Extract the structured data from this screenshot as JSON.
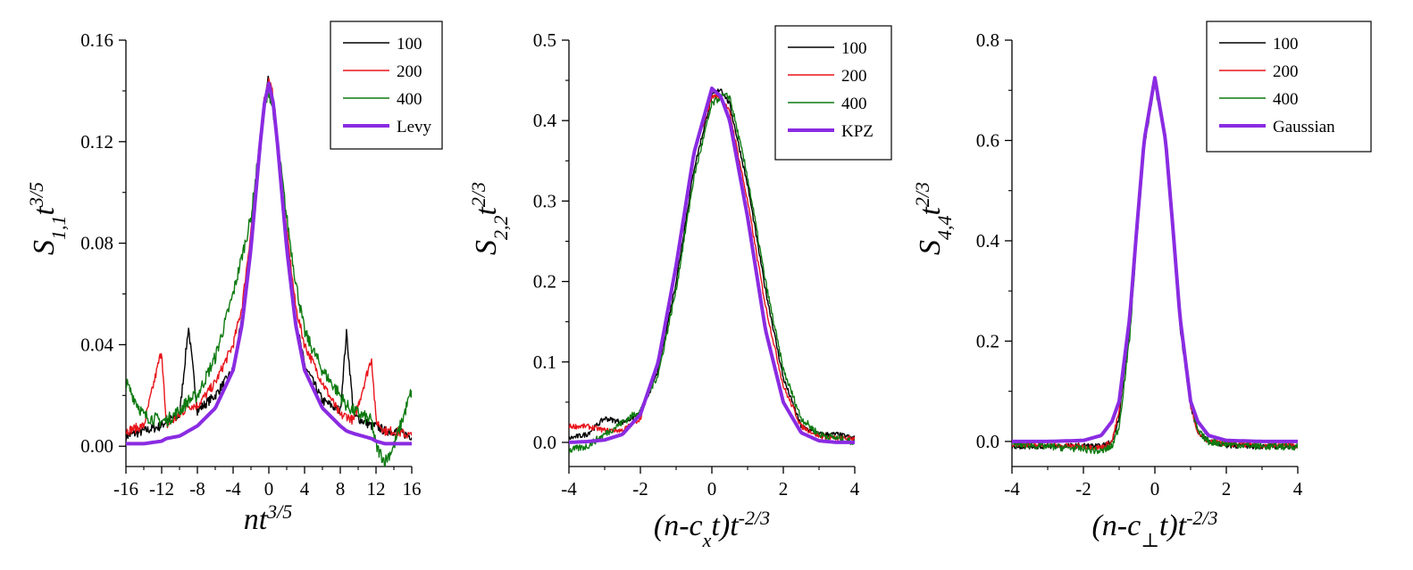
{
  "colors": {
    "n100": "#000000",
    "n200": "#e8141b",
    "n400": "#0d7a10",
    "theory": "#8a2be2"
  },
  "chart_data": [
    {
      "type": "line",
      "panel": "left",
      "xlabel": {
        "main": "nt",
        "sup": "3/5"
      },
      "ylabel": {
        "main": "S",
        "sub": "1,1",
        "mid": "t",
        "sup": "3/5"
      },
      "xlim": [
        -16,
        16
      ],
      "ylim": [
        -0.008,
        0.16
      ],
      "xticks": [
        "-16",
        "-12",
        "-8",
        "-4",
        "0",
        "4",
        "8",
        "12",
        "16"
      ],
      "yticks": [
        "0.00",
        "0.04",
        "0.08",
        "0.12",
        "0.16"
      ],
      "x": [
        -16,
        -14,
        -12,
        -11.5,
        -10,
        -9,
        -8,
        -6,
        -4,
        -3,
        -2,
        -1,
        -0.5,
        0,
        0.5,
        1,
        2,
        3,
        4,
        6,
        8,
        8.7,
        9.5,
        11.5,
        12,
        13,
        14,
        16
      ],
      "series": [
        {
          "name": "100",
          "values": [
            0.004,
            0.006,
            0.008,
            0.01,
            0.012,
            0.047,
            0.014,
            0.02,
            0.03,
            0.05,
            0.08,
            0.115,
            0.135,
            0.146,
            0.135,
            0.115,
            0.08,
            0.05,
            0.032,
            0.018,
            0.014,
            0.045,
            0.012,
            0.008,
            0.008,
            0.006,
            0.006,
            0.004
          ]
        },
        {
          "name": "200",
          "values": [
            0.006,
            0.008,
            0.038,
            0.008,
            0.012,
            0.016,
            0.016,
            0.025,
            0.04,
            0.055,
            0.085,
            0.12,
            0.138,
            0.144,
            0.138,
            0.12,
            0.085,
            0.055,
            0.04,
            0.025,
            0.012,
            0.012,
            0.01,
            0.035,
            0.01,
            0.006,
            0.006,
            0.004
          ]
        },
        {
          "name": "400",
          "values": [
            0.025,
            0.012,
            0.01,
            0.01,
            0.014,
            0.018,
            0.02,
            0.035,
            0.06,
            0.075,
            0.09,
            0.12,
            0.132,
            0.14,
            0.132,
            0.12,
            0.09,
            0.065,
            0.045,
            0.03,
            0.02,
            0.016,
            0.014,
            0.01,
            0.0,
            -0.006,
            0.0,
            0.022
          ]
        },
        {
          "name": "Levy",
          "values": [
            0.001,
            0.001,
            0.002,
            0.003,
            0.004,
            0.006,
            0.008,
            0.015,
            0.03,
            0.048,
            0.078,
            0.118,
            0.135,
            0.143,
            0.135,
            0.118,
            0.078,
            0.048,
            0.03,
            0.015,
            0.008,
            0.006,
            0.005,
            0.003,
            0.002,
            0.001,
            0.001,
            0.001
          ]
        }
      ],
      "legend": [
        "100",
        "200",
        "400",
        "Levy"
      ]
    },
    {
      "type": "line",
      "panel": "middle",
      "xlabel": {
        "main": "(n-c",
        "sub": "x",
        "after": "t)t",
        "sup": "-2/3"
      },
      "ylabel": {
        "main": "S",
        "sub": "2,2",
        "mid": "t",
        "sup": "2/3"
      },
      "xlim": [
        -4,
        4
      ],
      "ylim": [
        -0.03,
        0.5
      ],
      "xticks": [
        "-4",
        "-2",
        "0",
        "2",
        "4"
      ],
      "yticks": [
        "0.0",
        "0.1",
        "0.2",
        "0.3",
        "0.4",
        "0.5"
      ],
      "x": [
        -4,
        -3.5,
        -3,
        -2.5,
        -2,
        -1.5,
        -1,
        -0.5,
        0,
        0.25,
        0.5,
        1,
        1.5,
        2,
        2.5,
        3,
        3.5,
        4
      ],
      "series": [
        {
          "name": "100",
          "values": [
            0.005,
            0.01,
            0.03,
            0.025,
            0.035,
            0.09,
            0.2,
            0.34,
            0.43,
            0.44,
            0.42,
            0.32,
            0.19,
            0.08,
            0.02,
            0.01,
            0.01,
            0.005
          ]
        },
        {
          "name": "200",
          "values": [
            0.02,
            0.02,
            0.015,
            0.015,
            0.03,
            0.1,
            0.22,
            0.36,
            0.43,
            0.43,
            0.41,
            0.3,
            0.17,
            0.07,
            0.02,
            0.008,
            0.005,
            0.005
          ]
        },
        {
          "name": "400",
          "values": [
            -0.01,
            -0.005,
            0.01,
            0.025,
            0.04,
            0.085,
            0.19,
            0.33,
            0.42,
            0.43,
            0.43,
            0.33,
            0.2,
            0.09,
            0.03,
            0.01,
            0.005,
            0.0
          ]
        },
        {
          "name": "KPZ",
          "values": [
            0.0,
            0.001,
            0.003,
            0.01,
            0.035,
            0.1,
            0.22,
            0.36,
            0.44,
            0.43,
            0.4,
            0.28,
            0.14,
            0.05,
            0.012,
            0.002,
            0.0,
            0.0
          ]
        }
      ],
      "legend": [
        "100",
        "200",
        "400",
        "KPZ"
      ]
    },
    {
      "type": "line",
      "panel": "right",
      "xlabel": {
        "main": "(n-c",
        "sub": "⊥",
        "after": "t)t",
        "sup": "-2/3"
      },
      "ylabel": {
        "main": "S",
        "sub": "4,4",
        "mid": "t",
        "sup": "2/3"
      },
      "xlim": [
        -4,
        4
      ],
      "ylim": [
        -0.05,
        0.8
      ],
      "xticks": [
        "-4",
        "-2",
        "0",
        "2",
        "4"
      ],
      "yticks": [
        "0.0",
        "0.2",
        "0.4",
        "0.6",
        "0.8"
      ],
      "x": [
        -4,
        -3,
        -2,
        -1.5,
        -1.2,
        -1,
        -0.7,
        -0.5,
        -0.3,
        0,
        0.3,
        0.5,
        0.7,
        1,
        1.2,
        1.5,
        2,
        3,
        4
      ],
      "series": [
        {
          "name": "100",
          "values": [
            -0.01,
            -0.01,
            -0.008,
            -0.01,
            0.0,
            0.05,
            0.23,
            0.42,
            0.6,
            0.72,
            0.6,
            0.42,
            0.23,
            0.07,
            0.02,
            0.0,
            -0.008,
            -0.01,
            -0.01
          ]
        },
        {
          "name": "200",
          "values": [
            -0.005,
            -0.008,
            -0.01,
            -0.012,
            0.0,
            0.06,
            0.24,
            0.43,
            0.61,
            0.72,
            0.61,
            0.43,
            0.24,
            0.07,
            0.02,
            0.0,
            -0.005,
            -0.008,
            -0.008
          ]
        },
        {
          "name": "400",
          "values": [
            -0.005,
            -0.01,
            -0.015,
            -0.02,
            -0.01,
            0.03,
            0.21,
            0.41,
            0.59,
            0.71,
            0.6,
            0.42,
            0.24,
            0.08,
            0.02,
            0.0,
            -0.005,
            -0.01,
            -0.01
          ]
        },
        {
          "name": "Gaussian",
          "values": [
            0.0,
            0.0,
            0.002,
            0.012,
            0.04,
            0.08,
            0.25,
            0.43,
            0.6,
            0.725,
            0.6,
            0.43,
            0.25,
            0.08,
            0.04,
            0.012,
            0.002,
            0.0,
            0.0
          ]
        }
      ],
      "legend": [
        "100",
        "200",
        "400",
        "Gaussian"
      ]
    }
  ]
}
